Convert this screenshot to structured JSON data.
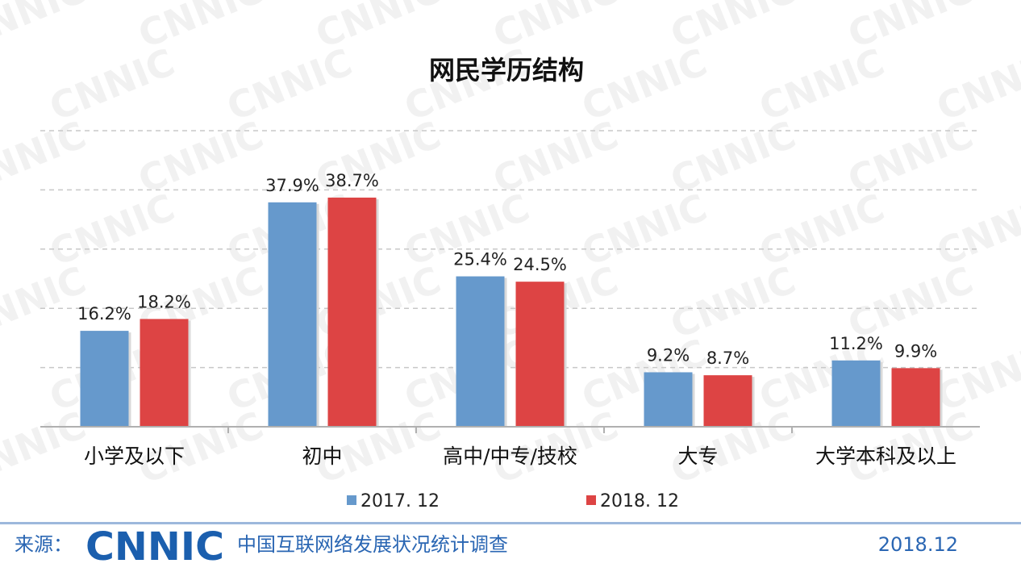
{
  "chart_data": {
    "type": "bar",
    "title": "网民学历结构",
    "categories": [
      "小学及以下",
      "初中",
      "高中/中专/技校",
      "大专",
      "大学本科及以上"
    ],
    "series": [
      {
        "name": "2017. 12",
        "color": "#6699cc",
        "values": [
          16.2,
          37.9,
          25.4,
          9.2,
          11.2
        ]
      },
      {
        "name": "2018. 12",
        "color": "#dd4444",
        "values": [
          18.2,
          38.7,
          24.5,
          8.7,
          9.9
        ]
      }
    ],
    "data_labels": [
      [
        "16.2%",
        "37.9%",
        "25.4%",
        "9.2%",
        "11.2%"
      ],
      [
        "18.2%",
        "38.7%",
        "24.5%",
        "8.7%",
        "9.9%"
      ]
    ],
    "ylim": [
      0,
      50
    ],
    "grid": true,
    "legend_position": "bottom"
  },
  "watermark": "CNNIC",
  "footer": {
    "source_label": "来源：",
    "logo_text": "CNNIC",
    "org_name": "中国互联网络发展状况统计调查",
    "date": "2018.12"
  }
}
